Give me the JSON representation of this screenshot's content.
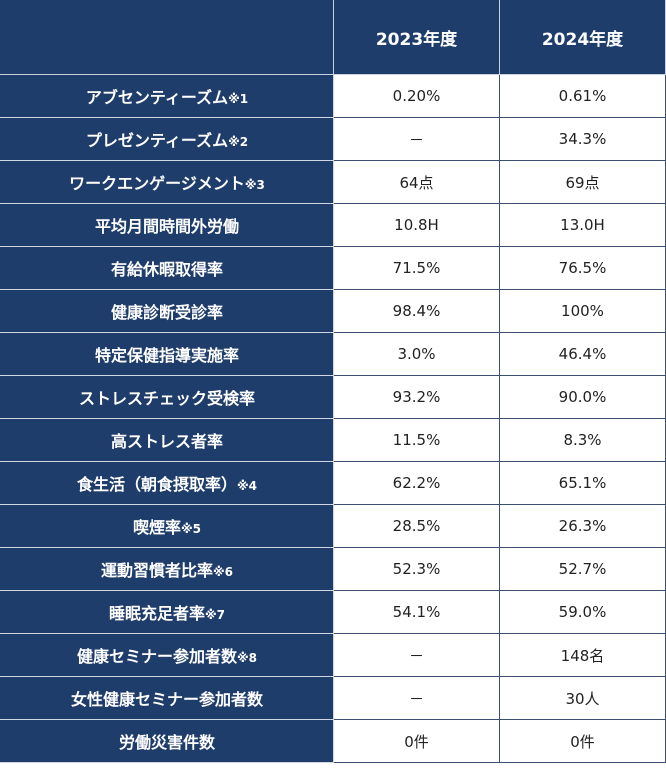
{
  "header": {
    "col1": "",
    "col2": "2023年度",
    "col3": "2024年度"
  },
  "rows": [
    {
      "label": "アブセンティーズム",
      "note": "※1",
      "v2023": "0.20%",
      "v2024": "0.61%"
    },
    {
      "label": "プレゼンティーズム",
      "note": "※2",
      "v2023": "－",
      "v2024": "34.3%"
    },
    {
      "label": "ワークエンゲージメント",
      "note": "※3",
      "v2023": "64点",
      "v2024": "69点"
    },
    {
      "label": "平均月間時間外労働",
      "note": "",
      "v2023": "10.8H",
      "v2024": "13.0H"
    },
    {
      "label": "有給休暇取得率",
      "note": "",
      "v2023": "71.5%",
      "v2024": "76.5%"
    },
    {
      "label": "健康診断受診率",
      "note": "",
      "v2023": "98.4%",
      "v2024": "100%"
    },
    {
      "label": "特定保健指導実施率",
      "note": "",
      "v2023": "3.0%",
      "v2024": "46.4%"
    },
    {
      "label": "ストレスチェック受検率",
      "note": "",
      "v2023": "93.2%",
      "v2024": "90.0%"
    },
    {
      "label": "高ストレス者率",
      "note": "",
      "v2023": "11.5%",
      "v2024": "8.3%"
    },
    {
      "label": "食生活（朝食摂取率）",
      "note": "※4",
      "v2023": "62.2%",
      "v2024": "65.1%"
    },
    {
      "label": "喫煙率",
      "note": "※5",
      "v2023": "28.5%",
      "v2024": "26.3%"
    },
    {
      "label": "運動習慣者比率",
      "note": "※6",
      "v2023": "52.3%",
      "v2024": "52.7%"
    },
    {
      "label": "睡眠充足者率",
      "note": "※7",
      "v2023": "54.1%",
      "v2024": "59.0%"
    },
    {
      "label": "健康セミナー参加者数",
      "note": "※8",
      "v2023": "－",
      "v2024": "148名"
    },
    {
      "label": "女性健康セミナー参加者数",
      "note": "",
      "v2023": "－",
      "v2024": "30人"
    },
    {
      "label": "労働災害件数",
      "note": "",
      "v2023": "0件",
      "v2024": "0件"
    }
  ]
}
